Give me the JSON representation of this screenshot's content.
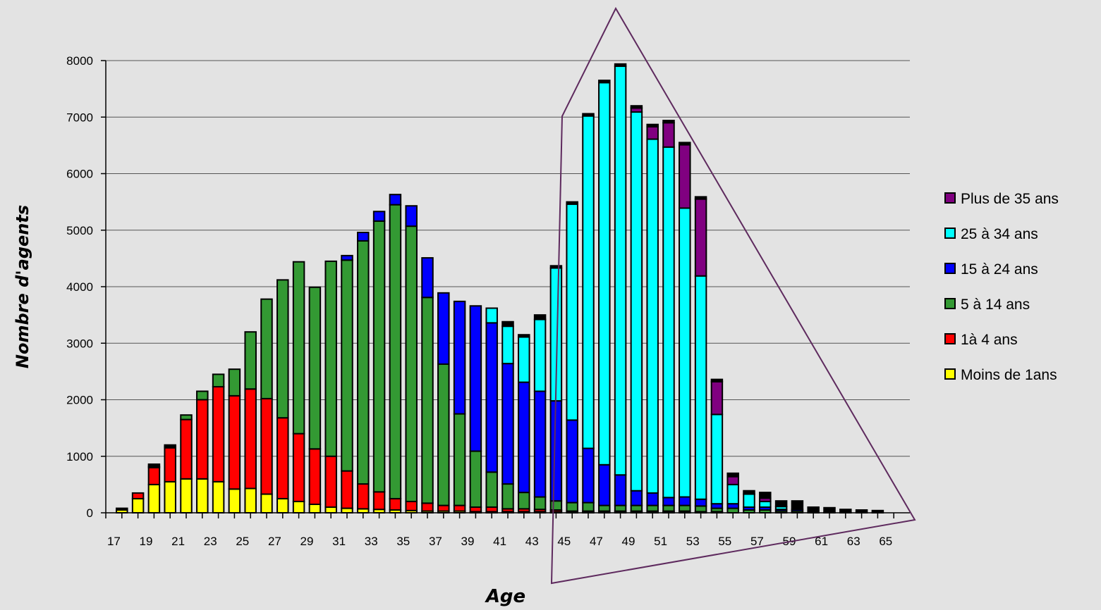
{
  "chart_data": {
    "type": "bar",
    "stacked": true,
    "title": "",
    "xlabel": "Age",
    "ylabel": "Nombre d'agents",
    "ylim": [
      0,
      8000
    ],
    "yticks": [
      0,
      1000,
      2000,
      3000,
      4000,
      5000,
      6000,
      7000,
      8000
    ],
    "xtick_labels": [
      "17",
      "19",
      "21",
      "23",
      "25",
      "27",
      "29",
      "31",
      "33",
      "35",
      "37",
      "39",
      "41",
      "43",
      "45",
      "47",
      "49",
      "51",
      "53",
      "55",
      "57",
      "59",
      "61",
      "63",
      "65"
    ],
    "grid": "horizontal",
    "legend_position": "right",
    "categories": [
      "18",
      "19",
      "20",
      "21",
      "22",
      "23",
      "24",
      "25",
      "26",
      "27",
      "28",
      "29",
      "30",
      "31",
      "32",
      "33",
      "34",
      "35",
      "36",
      "37",
      "38",
      "39",
      "40",
      "41",
      "42",
      "43",
      "44",
      "45",
      "46",
      "47",
      "48",
      "49",
      "50",
      "51",
      "52",
      "53",
      "54",
      "55",
      "56",
      "57",
      "58",
      "59",
      "60",
      "61",
      "62",
      "63",
      "64",
      "65"
    ],
    "series": [
      {
        "name": "Moins de 1ans",
        "color": "#ffff00",
        "values": [
          50,
          250,
          500,
          550,
          600,
          600,
          550,
          420,
          430,
          330,
          250,
          200,
          150,
          100,
          80,
          70,
          60,
          50,
          40,
          30,
          30,
          30,
          20,
          20,
          20,
          20,
          20,
          20,
          10,
          10,
          10,
          10,
          10,
          10,
          10,
          10,
          10,
          10,
          0,
          0,
          0,
          0,
          0,
          0,
          0,
          0,
          0,
          0
        ]
      },
      {
        "name": "1à 4 ans",
        "color": "#ff0000",
        "values": [
          0,
          100,
          300,
          600,
          1050,
          1400,
          1680,
          1650,
          1760,
          1690,
          1430,
          1200,
          980,
          900,
          660,
          440,
          310,
          200,
          160,
          140,
          100,
          100,
          80,
          80,
          50,
          50,
          40,
          30,
          20,
          20,
          20,
          20,
          20,
          20,
          20,
          20,
          10,
          10,
          0,
          0,
          0,
          0,
          0,
          0,
          0,
          0,
          0,
          0
        ]
      },
      {
        "name": "5 à 14 ans",
        "color": "#339933",
        "values": [
          0,
          0,
          20,
          20,
          80,
          150,
          220,
          470,
          1010,
          1760,
          2440,
          3040,
          2860,
          3450,
          3730,
          4300,
          4790,
          5200,
          4870,
          3640,
          2500,
          1620,
          990,
          620,
          440,
          290,
          220,
          160,
          150,
          150,
          100,
          100,
          100,
          100,
          100,
          100,
          100,
          60,
          80,
          50,
          50,
          30,
          30,
          0,
          0,
          0,
          0,
          0
        ]
      },
      {
        "name": "15 à 24 ans",
        "color": "#0000ff",
        "values": [
          0,
          0,
          0,
          0,
          0,
          0,
          0,
          0,
          0,
          0,
          0,
          0,
          0,
          0,
          80,
          150,
          170,
          180,
          360,
          700,
          1260,
          1990,
          2570,
          2640,
          2130,
          1950,
          1870,
          1770,
          1460,
          960,
          720,
          540,
          260,
          220,
          140,
          150,
          120,
          80,
          80,
          50,
          50,
          30,
          30,
          0,
          0,
          0,
          0,
          0
        ]
      },
      {
        "name": "25 à 34 ans",
        "color": "#00ffff",
        "values": [
          0,
          0,
          0,
          0,
          0,
          0,
          0,
          0,
          0,
          0,
          0,
          0,
          0,
          0,
          0,
          0,
          0,
          0,
          0,
          0,
          0,
          0,
          0,
          260,
          660,
          800,
          1270,
          2350,
          3820,
          5880,
          6760,
          7230,
          6700,
          6260,
          6200,
          5110,
          3950,
          1580,
          340,
          230,
          100,
          50,
          0,
          0,
          0,
          0,
          0,
          0
        ]
      },
      {
        "name": "Plus de 35 ans",
        "color": "#800080",
        "values": [
          0,
          0,
          0,
          0,
          0,
          0,
          0,
          0,
          0,
          0,
          0,
          0,
          0,
          0,
          0,
          0,
          0,
          0,
          0,
          0,
          0,
          0,
          0,
          0,
          0,
          0,
          0,
          0,
          0,
          0,
          0,
          0,
          70,
          220,
          430,
          1120,
          1360,
          580,
          140,
          0,
          60,
          0,
          0,
          0,
          0,
          0,
          0,
          0
        ]
      },
      {
        "name": "",
        "color": "#000000",
        "values": [
          30,
          0,
          40,
          30,
          0,
          0,
          0,
          0,
          0,
          0,
          0,
          0,
          0,
          0,
          0,
          0,
          0,
          0,
          0,
          0,
          0,
          0,
          0,
          0,
          80,
          40,
          80,
          40,
          40,
          40,
          40,
          40,
          40,
          40,
          40,
          40,
          40,
          40,
          60,
          60,
          100,
          100,
          150,
          100,
          90,
          60,
          50,
          40
        ]
      }
    ]
  }
}
